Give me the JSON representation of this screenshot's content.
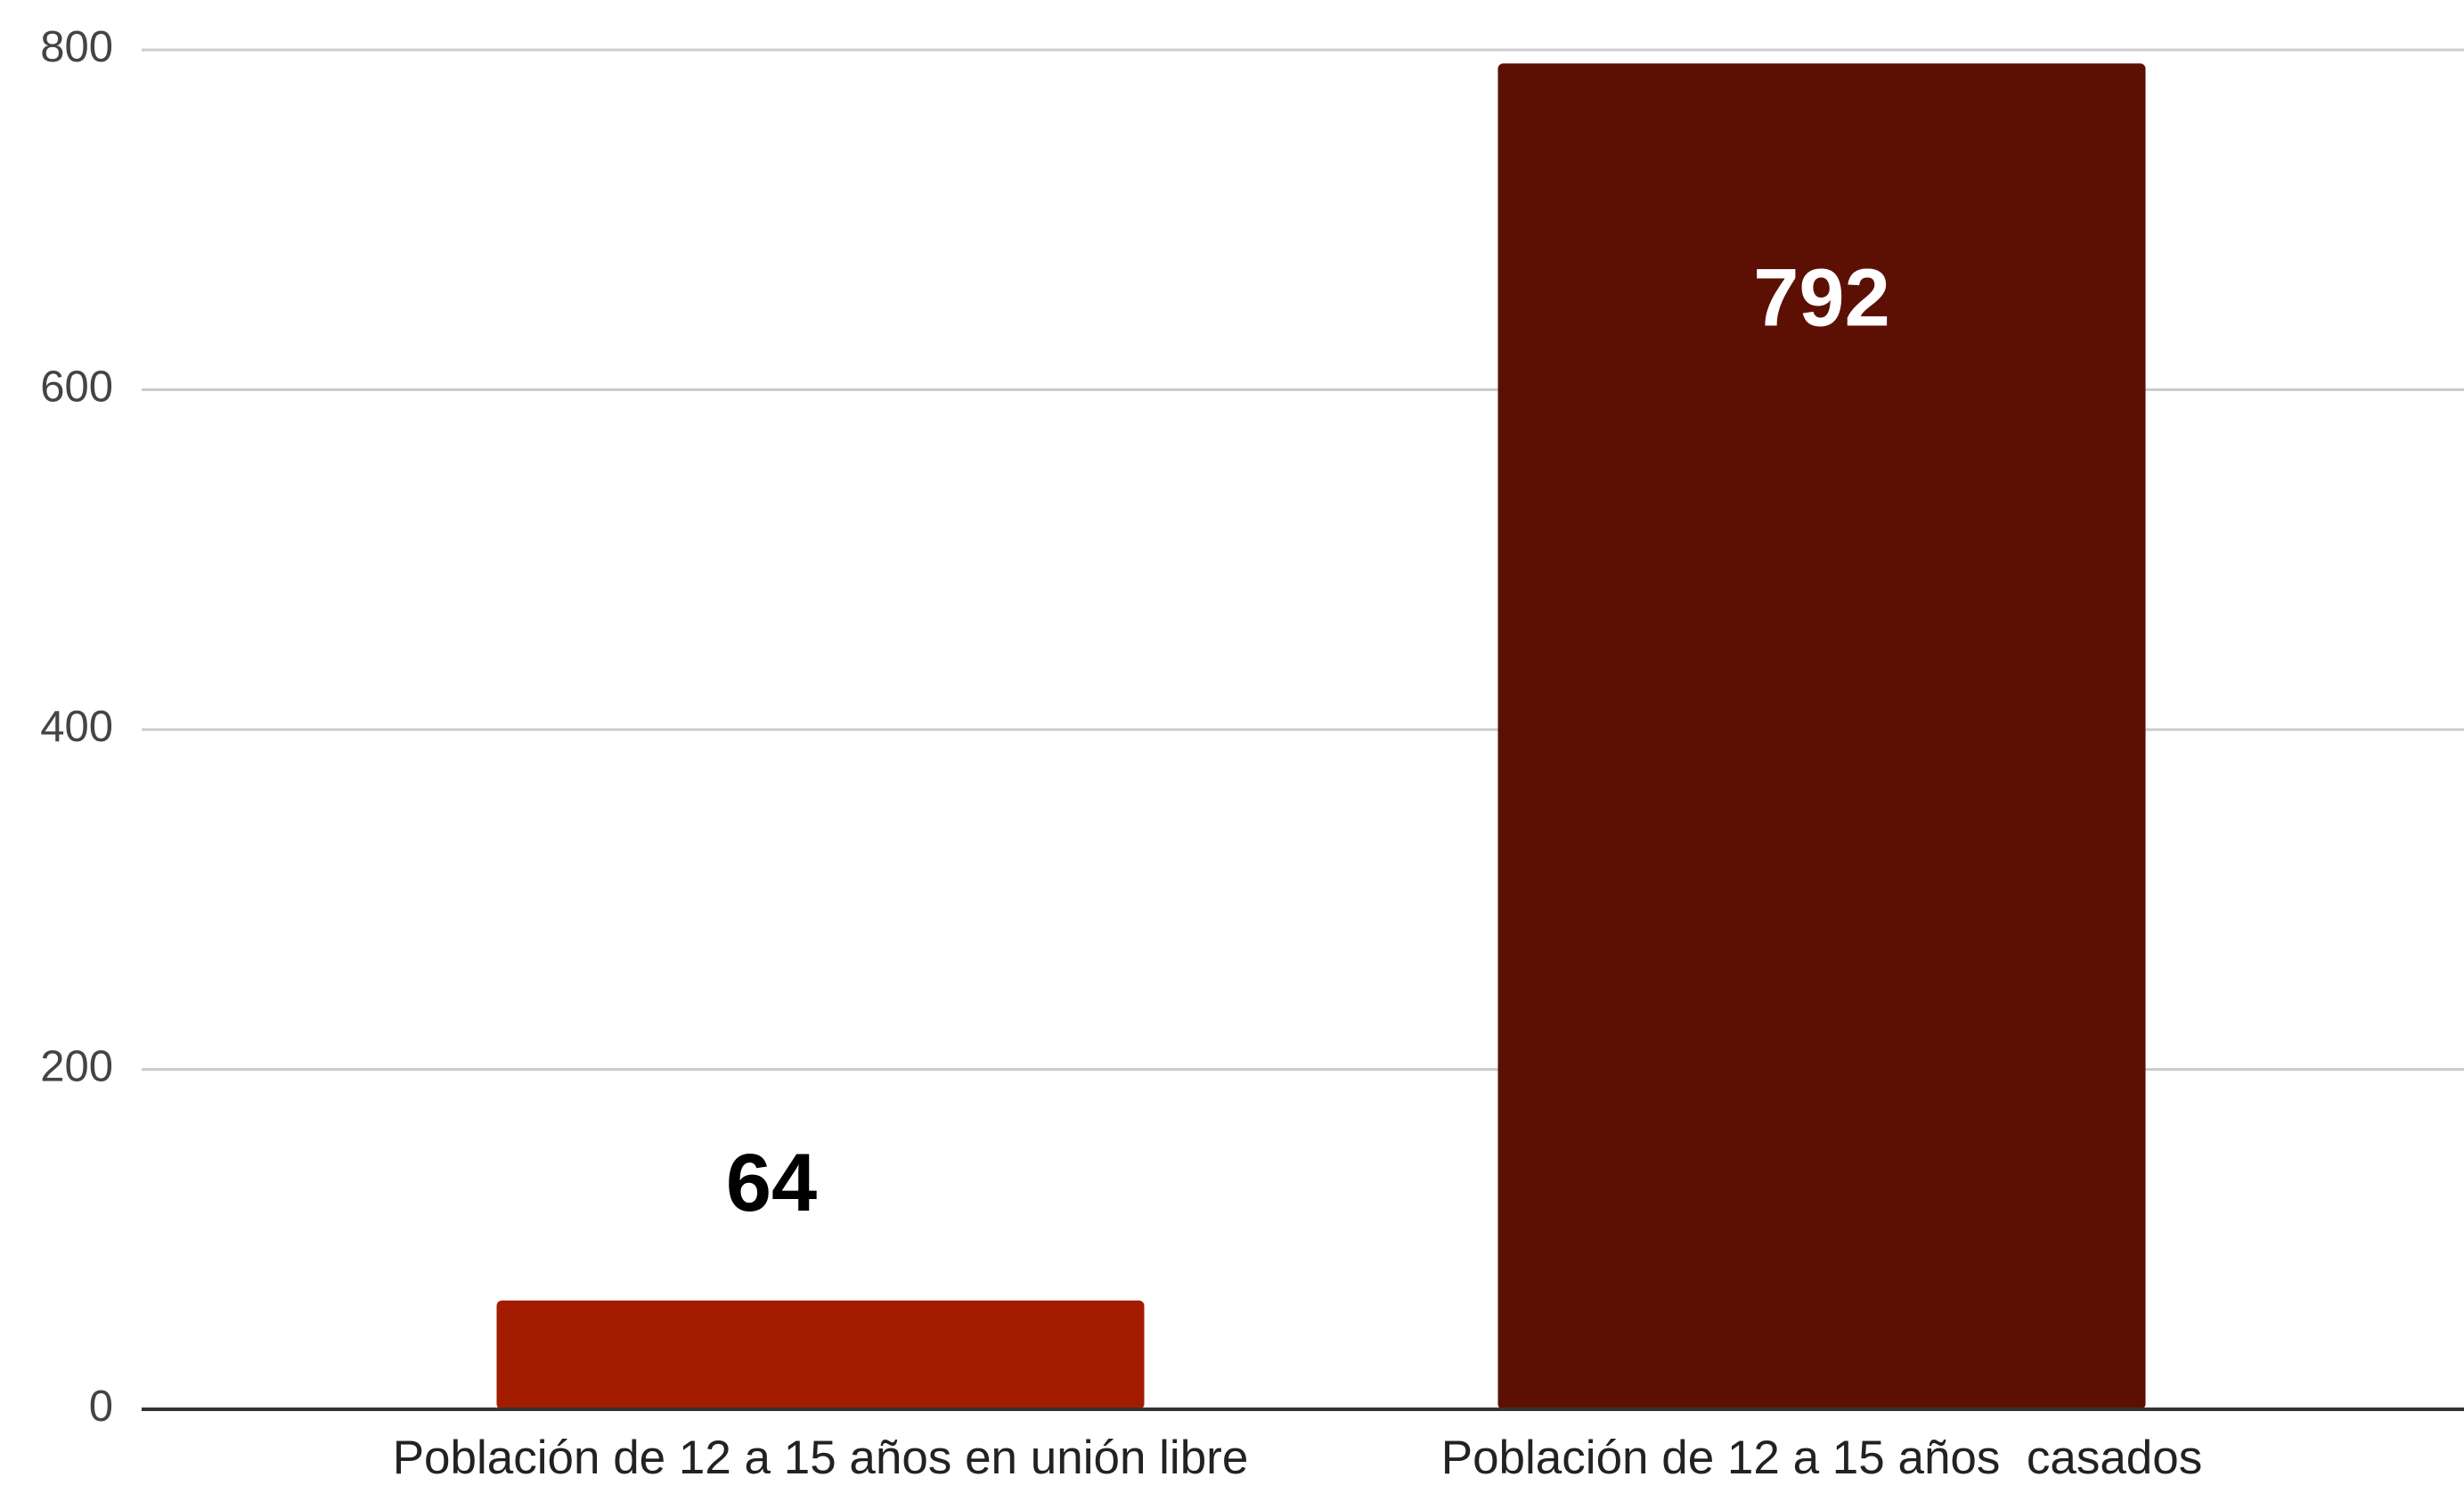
{
  "chart_data": {
    "type": "bar",
    "categories": [
      "Población de 12 a 15 años en unión libre",
      "Población de 12 a 15 años  casados"
    ],
    "values": [
      64,
      792
    ],
    "colors": [
      "#a31c00",
      "#5c1004"
    ],
    "ylim": [
      0,
      800
    ],
    "yticks": [
      0,
      200,
      400,
      600,
      800
    ],
    "grid": true
  }
}
